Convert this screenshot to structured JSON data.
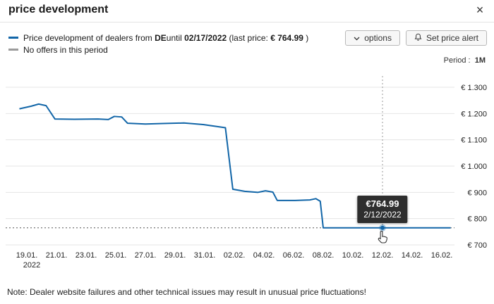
{
  "header": {
    "title": "price development",
    "close_glyph": "×"
  },
  "legend": {
    "price_color": "#1266a8",
    "no_offers_color": "#9b9b9b",
    "price_line": {
      "p1": "Price development of dealers from ",
      "p2": "DE",
      "p3": "until ",
      "p4": "02/17/2022",
      "p5": " (last price: ",
      "p6": "€ 764.99",
      "p7": " )"
    },
    "no_offers": "No offers in this period"
  },
  "toolbar": {
    "options_label": "options",
    "price_alert_label": "Set price alert",
    "period_label": "Period :",
    "period_value": "1M"
  },
  "note": "Note: Dealer website failures and other technical issues may result in unusual price fluctuations!",
  "chart_data": {
    "type": "line",
    "title": "price development",
    "grid": true,
    "legend_position": "top-left",
    "ylim": [
      700,
      1300
    ],
    "y_ticks": [
      {
        "value": 700,
        "label": "€ 700"
      },
      {
        "value": 800,
        "label": "€ 800"
      },
      {
        "value": 900,
        "label": "€ 900"
      },
      {
        "value": 1000,
        "label": "€ 1.000"
      },
      {
        "value": 1100,
        "label": "€ 1.100"
      },
      {
        "value": 1200,
        "label": "€ 1.200"
      },
      {
        "value": 1300,
        "label": "€ 1.300"
      }
    ],
    "x_ticks": [
      {
        "day": 0,
        "label": "19.01.",
        "sublabel": "2022"
      },
      {
        "day": 2,
        "label": "21.01."
      },
      {
        "day": 4,
        "label": "23.01."
      },
      {
        "day": 6,
        "label": "25.01."
      },
      {
        "day": 8,
        "label": "27.01."
      },
      {
        "day": 10,
        "label": "29.01."
      },
      {
        "day": 12,
        "label": "31.01."
      },
      {
        "day": 14,
        "label": "02.02."
      },
      {
        "day": 16,
        "label": "04.02."
      },
      {
        "day": 18,
        "label": "06.02."
      },
      {
        "day": 20,
        "label": "08.02."
      },
      {
        "day": 22,
        "label": "10.02."
      },
      {
        "day": 24,
        "label": "12.02."
      },
      {
        "day": 26,
        "label": "14.02."
      },
      {
        "day": 28,
        "label": "16.02."
      }
    ],
    "series": [
      {
        "name": "Price development of dealers from DE",
        "color": "#1266a8",
        "points": [
          [
            -0.5,
            1218
          ],
          [
            0.3,
            1228
          ],
          [
            0.8,
            1236
          ],
          [
            1.3,
            1230
          ],
          [
            1.9,
            1179
          ],
          [
            3.2,
            1178
          ],
          [
            4.8,
            1179
          ],
          [
            5.5,
            1177
          ],
          [
            5.9,
            1189
          ],
          [
            6.4,
            1187
          ],
          [
            6.8,
            1163
          ],
          [
            8,
            1160
          ],
          [
            9.2,
            1162
          ],
          [
            10.6,
            1164
          ],
          [
            11.9,
            1158
          ],
          [
            12.9,
            1150
          ],
          [
            13.4,
            1146
          ],
          [
            13.9,
            912
          ],
          [
            14.7,
            904
          ],
          [
            15.6,
            900
          ],
          [
            16.1,
            906
          ],
          [
            16.6,
            901
          ],
          [
            16.9,
            869
          ],
          [
            18.1,
            869
          ],
          [
            19.1,
            871
          ],
          [
            19.5,
            876
          ],
          [
            19.8,
            866
          ],
          [
            20,
            764.99
          ],
          [
            28.6,
            764.99
          ]
        ]
      }
    ],
    "last_price_line": {
      "value": 764.99,
      "style": "dashed"
    },
    "tooltip": {
      "price_label": "€764.99",
      "date_label": "2/12/2022",
      "day": 24,
      "value": 764.99
    }
  }
}
